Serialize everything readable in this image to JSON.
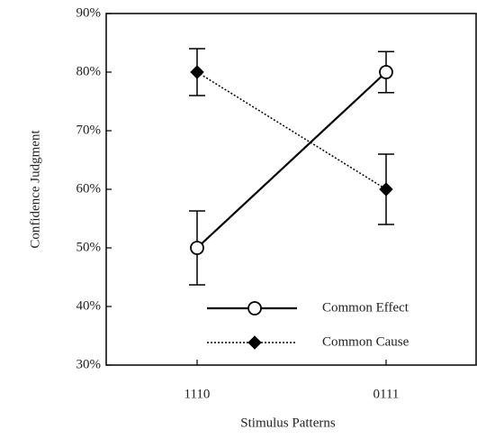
{
  "chart_data": {
    "type": "line",
    "ylabel": "Confidence Judgment",
    "xlabel": "Stimulus Patterns",
    "categories": [
      "1110",
      "0111"
    ],
    "series": [
      {
        "name": "Common Effect",
        "color": "#000000",
        "line_style": "solid",
        "marker": "circle",
        "marker_fill": "#ffffff",
        "values": [
          50,
          80
        ],
        "errors": [
          6.3,
          3.5
        ]
      },
      {
        "name": "Common Cause",
        "color": "#000000",
        "line_style": "dotted",
        "marker": "diamond",
        "marker_fill": "#000000",
        "values": [
          80,
          60
        ],
        "errors": [
          4,
          6
        ]
      }
    ],
    "ylim": [
      30,
      90
    ],
    "yticks": [
      {
        "value": 30,
        "label": "30%"
      },
      {
        "value": 40,
        "label": "40%"
      },
      {
        "value": 50,
        "label": "50%"
      },
      {
        "value": 60,
        "label": "60%"
      },
      {
        "value": 70,
        "label": "70%"
      },
      {
        "value": 80,
        "label": "80%"
      },
      {
        "value": 90,
        "label": "90%"
      }
    ],
    "legend_loc": "lower right"
  }
}
